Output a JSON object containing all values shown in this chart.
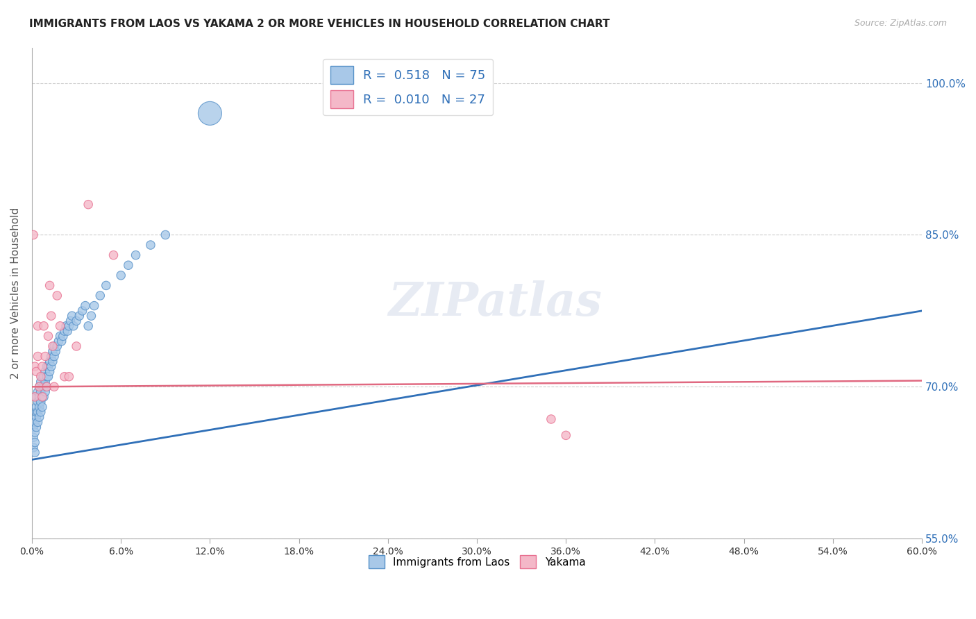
{
  "title": "IMMIGRANTS FROM LAOS VS YAKAMA 2 OR MORE VEHICLES IN HOUSEHOLD CORRELATION CHART",
  "source": "Source: ZipAtlas.com",
  "ylabel": "2 or more Vehicles in Household",
  "xmin": 0.0,
  "xmax": 0.6,
  "ymin": 0.575,
  "ymax": 1.035,
  "legend_r1": "R =  0.518",
  "legend_n1": "N = 75",
  "legend_r2": "R =  0.010",
  "legend_n2": "N = 27",
  "blue_color": "#a8c8e8",
  "pink_color": "#f4b8c8",
  "blue_edge_color": "#5590c8",
  "pink_edge_color": "#e87090",
  "blue_line_color": "#3070b8",
  "pink_line_color": "#e06880",
  "watermark": "ZIPatlas",
  "blue_scatter_x": [
    0.001,
    0.001,
    0.001,
    0.002,
    0.002,
    0.002,
    0.002,
    0.003,
    0.003,
    0.003,
    0.003,
    0.003,
    0.004,
    0.004,
    0.004,
    0.004,
    0.005,
    0.005,
    0.005,
    0.005,
    0.006,
    0.006,
    0.006,
    0.006,
    0.007,
    0.007,
    0.007,
    0.007,
    0.008,
    0.008,
    0.008,
    0.009,
    0.009,
    0.009,
    0.01,
    0.01,
    0.01,
    0.011,
    0.011,
    0.012,
    0.012,
    0.013,
    0.013,
    0.014,
    0.014,
    0.015,
    0.015,
    0.016,
    0.017,
    0.018,
    0.019,
    0.02,
    0.021,
    0.022,
    0.023,
    0.024,
    0.025,
    0.026,
    0.027,
    0.028,
    0.03,
    0.032,
    0.034,
    0.036,
    0.038,
    0.04,
    0.042,
    0.046,
    0.05,
    0.06,
    0.065,
    0.07,
    0.08,
    0.09,
    0.12
  ],
  "blue_scatter_y": [
    0.64,
    0.65,
    0.66,
    0.635,
    0.645,
    0.655,
    0.665,
    0.66,
    0.67,
    0.675,
    0.68,
    0.69,
    0.665,
    0.675,
    0.685,
    0.695,
    0.67,
    0.68,
    0.69,
    0.7,
    0.675,
    0.685,
    0.695,
    0.705,
    0.68,
    0.69,
    0.7,
    0.71,
    0.69,
    0.7,
    0.71,
    0.695,
    0.705,
    0.715,
    0.7,
    0.71,
    0.72,
    0.71,
    0.72,
    0.715,
    0.725,
    0.72,
    0.73,
    0.725,
    0.735,
    0.73,
    0.74,
    0.735,
    0.74,
    0.745,
    0.75,
    0.745,
    0.75,
    0.755,
    0.76,
    0.755,
    0.76,
    0.765,
    0.77,
    0.76,
    0.765,
    0.77,
    0.775,
    0.78,
    0.76,
    0.77,
    0.78,
    0.79,
    0.8,
    0.81,
    0.82,
    0.83,
    0.84,
    0.85,
    0.97
  ],
  "blue_scatter_size": [
    80,
    80,
    80,
    80,
    80,
    80,
    80,
    80,
    80,
    80,
    80,
    80,
    80,
    80,
    80,
    80,
    80,
    80,
    80,
    80,
    80,
    80,
    80,
    80,
    80,
    80,
    80,
    80,
    80,
    80,
    80,
    80,
    80,
    80,
    80,
    80,
    80,
    80,
    80,
    80,
    80,
    80,
    80,
    80,
    80,
    80,
    80,
    80,
    80,
    80,
    80,
    80,
    80,
    80,
    80,
    80,
    80,
    80,
    80,
    80,
    80,
    80,
    80,
    80,
    80,
    80,
    80,
    80,
    80,
    80,
    80,
    80,
    80,
    80,
    600
  ],
  "pink_scatter_x": [
    0.001,
    0.002,
    0.002,
    0.003,
    0.004,
    0.004,
    0.005,
    0.006,
    0.007,
    0.007,
    0.008,
    0.009,
    0.01,
    0.011,
    0.012,
    0.013,
    0.014,
    0.015,
    0.017,
    0.019,
    0.022,
    0.025,
    0.03,
    0.038,
    0.055,
    0.35,
    0.36
  ],
  "pink_scatter_y": [
    0.85,
    0.69,
    0.72,
    0.715,
    0.73,
    0.76,
    0.7,
    0.71,
    0.69,
    0.72,
    0.76,
    0.73,
    0.7,
    0.75,
    0.8,
    0.77,
    0.74,
    0.7,
    0.79,
    0.76,
    0.71,
    0.71,
    0.74,
    0.88,
    0.83,
    0.668,
    0.652
  ],
  "pink_scatter_size": [
    80,
    80,
    80,
    80,
    80,
    80,
    80,
    80,
    80,
    80,
    80,
    80,
    80,
    80,
    80,
    80,
    80,
    80,
    80,
    80,
    80,
    80,
    80,
    80,
    80,
    80,
    80
  ],
  "blue_line_x": [
    0.0,
    0.6
  ],
  "blue_line_y": [
    0.628,
    0.775
  ],
  "pink_line_x": [
    0.0,
    0.6
  ],
  "pink_line_y": [
    0.7,
    0.706
  ]
}
